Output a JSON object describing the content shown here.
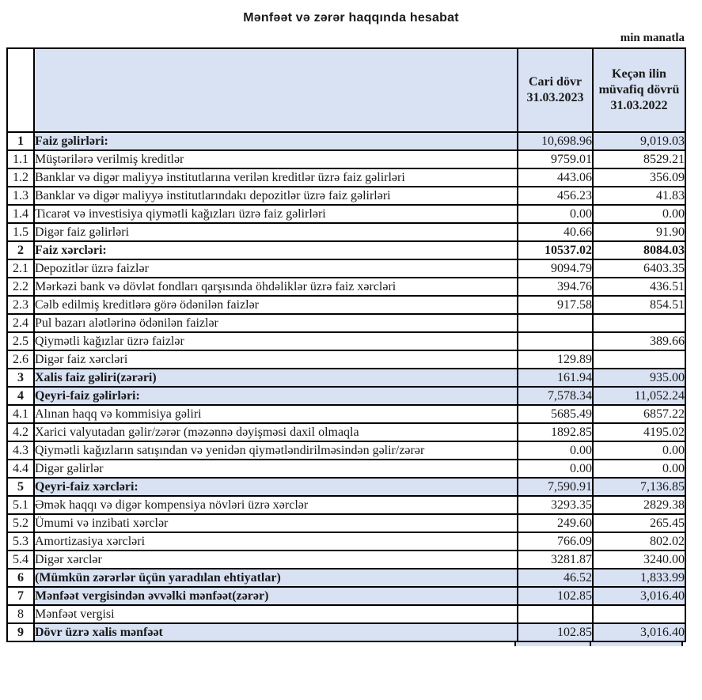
{
  "page": {
    "title": "Mənfəət və zərər haqqında hesabat",
    "unit_note": "min manatla"
  },
  "colors": {
    "highlight": "#D9E2F3",
    "border": "#000000",
    "text": "#1A1A1A"
  },
  "table": {
    "header": {
      "num": "",
      "label": "",
      "col_current": "Cari dövr",
      "col_current_date": "31.03.2023",
      "col_prior": "Keçən ilin müvafiq dövrü",
      "col_prior_date": "31.03.2022"
    },
    "rows": [
      {
        "num": "1",
        "label": "Faiz gəlirləri:",
        "current": "10,698.96",
        "prior": "9,019.03",
        "emphasis": true,
        "highlight": true,
        "value_bold": false
      },
      {
        "num": "1.1",
        "label": "Müştərilərə verilmiş kreditlər",
        "current": "9759.01",
        "prior": "8529.21",
        "emphasis": false,
        "highlight": false,
        "value_bold": false
      },
      {
        "num": "1.2",
        "label": "Banklar və digər maliyyə institutlarına verilən kreditlər üzrə faiz gəlirləri",
        "current": "443.06",
        "prior": "356.09",
        "emphasis": false,
        "highlight": false,
        "value_bold": false
      },
      {
        "num": "1.3",
        "label": "Banklar və digər maliyyə institutlarındakı depozitlər üzrə faiz gəlirləri",
        "current": "456.23",
        "prior": "41.83",
        "emphasis": false,
        "highlight": false,
        "value_bold": false
      },
      {
        "num": "1.4",
        "label": "Ticarət və investisiya qiymətli kağızları üzrə faiz gəlirləri",
        "current": "0.00",
        "prior": "0.00",
        "emphasis": false,
        "highlight": false,
        "value_bold": false
      },
      {
        "num": "1.5",
        "label": "Digər faiz gəlirləri",
        "current": "40.66",
        "prior": "91.90",
        "emphasis": false,
        "highlight": false,
        "value_bold": false
      },
      {
        "num": "2",
        "label": "Faiz xərcləri:",
        "current": "10537.02",
        "prior": "8084.03",
        "emphasis": true,
        "highlight": false,
        "value_bold": true
      },
      {
        "num": "2.1",
        "label": "Depozitlər üzrə faizlər",
        "current": "9094.79",
        "prior": "6403.35",
        "emphasis": false,
        "highlight": false,
        "value_bold": false
      },
      {
        "num": "2.2",
        "label": "Mərkəzi bank və dövlət fondları qarşısında öhdəliklər üzrə faiz xərcləri",
        "current": "394.76",
        "prior": "436.51",
        "emphasis": false,
        "highlight": false,
        "value_bold": false
      },
      {
        "num": "2.3",
        "label": "Cəlb edilmiş kreditlərə görə ödənilən faizlər",
        "current": "917.58",
        "prior": "854.51",
        "emphasis": false,
        "highlight": false,
        "value_bold": false
      },
      {
        "num": "2.4",
        "label": "Pul bazarı alətlərinə ödənilən faizlər",
        "current": "",
        "prior": "",
        "emphasis": false,
        "highlight": false,
        "value_bold": false
      },
      {
        "num": "2.5",
        "label": "Qiymətli kağızlar üzrə faizlər",
        "current": "",
        "prior": "389.66",
        "emphasis": false,
        "highlight": false,
        "value_bold": false
      },
      {
        "num": "2.6",
        "label": "Digər faiz xərcləri",
        "current": "129.89",
        "prior": "",
        "emphasis": false,
        "highlight": false,
        "value_bold": false
      },
      {
        "num": "3",
        "label": "Xalis faiz gəliri(zərəri)",
        "current": "161.94",
        "prior": "935.00",
        "emphasis": true,
        "highlight": true,
        "value_bold": false
      },
      {
        "num": "4",
        "label": "Qeyri-faiz gəlirləri:",
        "current": "7,578.34",
        "prior": "11,052.24",
        "emphasis": true,
        "highlight": true,
        "value_bold": false
      },
      {
        "num": "4.1",
        "label": "Alınan haqq və kommisiya gəliri",
        "current": "5685.49",
        "prior": "6857.22",
        "emphasis": false,
        "highlight": false,
        "value_bold": false
      },
      {
        "num": "4.2",
        "label": "Xarici valyutadan gəlir/zərər (məzənnə dəyişməsi daxil olmaqla",
        "current": "1892.85",
        "prior": "4195.02",
        "emphasis": false,
        "highlight": false,
        "value_bold": false
      },
      {
        "num": "4.3",
        "label": "Qiymətli kağızların satışından və yenidən qiymətləndirilməsindən gəlir/zərər",
        "current": "0.00",
        "prior": "0.00",
        "emphasis": false,
        "highlight": false,
        "value_bold": false
      },
      {
        "num": "4.4",
        "label": "Digər gəlirlər",
        "current": "0.00",
        "prior": "0.00",
        "emphasis": false,
        "highlight": false,
        "value_bold": false
      },
      {
        "num": "5",
        "label": "Qeyri-faiz xərcləri:",
        "current": "7,590.91",
        "prior": "7,136.85",
        "emphasis": true,
        "highlight": true,
        "value_bold": false
      },
      {
        "num": "5.1",
        "label": "Əmək haqqı və digər kompensiya növləri üzrə xərclər",
        "current": "3293.35",
        "prior": "2829.38",
        "emphasis": false,
        "highlight": false,
        "value_bold": false
      },
      {
        "num": "5.2",
        "label": "Ümumi və inzibati xərclər",
        "current": "249.60",
        "prior": "265.45",
        "emphasis": false,
        "highlight": false,
        "value_bold": false
      },
      {
        "num": "5.3",
        "label": "Amortizasiya xərcləri",
        "current": "766.09",
        "prior": "802.02",
        "emphasis": false,
        "highlight": false,
        "value_bold": false
      },
      {
        "num": "5.4",
        "label": "Digər xərclər",
        "current": "3281.87",
        "prior": "3240.00",
        "emphasis": false,
        "highlight": false,
        "value_bold": false
      },
      {
        "num": "6",
        "label": "(Mümkün zərərlər üçün yaradılan ehtiyatlar)",
        "current": "46.52",
        "prior": "1,833.99",
        "emphasis": true,
        "highlight": true,
        "value_bold": false
      },
      {
        "num": "7",
        "label": "Mənfəət vergisindən əvvəlki mənfəət(zərər)",
        "current": "102.85",
        "prior": "3,016.40",
        "emphasis": true,
        "highlight": true,
        "value_bold": false
      },
      {
        "num": "8",
        "label": "Mənfəət vergisi",
        "current": "",
        "prior": "",
        "emphasis": false,
        "highlight": false,
        "value_bold": false
      },
      {
        "num": "9",
        "label": "Dövr üzrə xalis mənfəət",
        "current": "102.85",
        "prior": "3,016.40",
        "emphasis": true,
        "highlight": true,
        "value_bold": false
      }
    ]
  }
}
